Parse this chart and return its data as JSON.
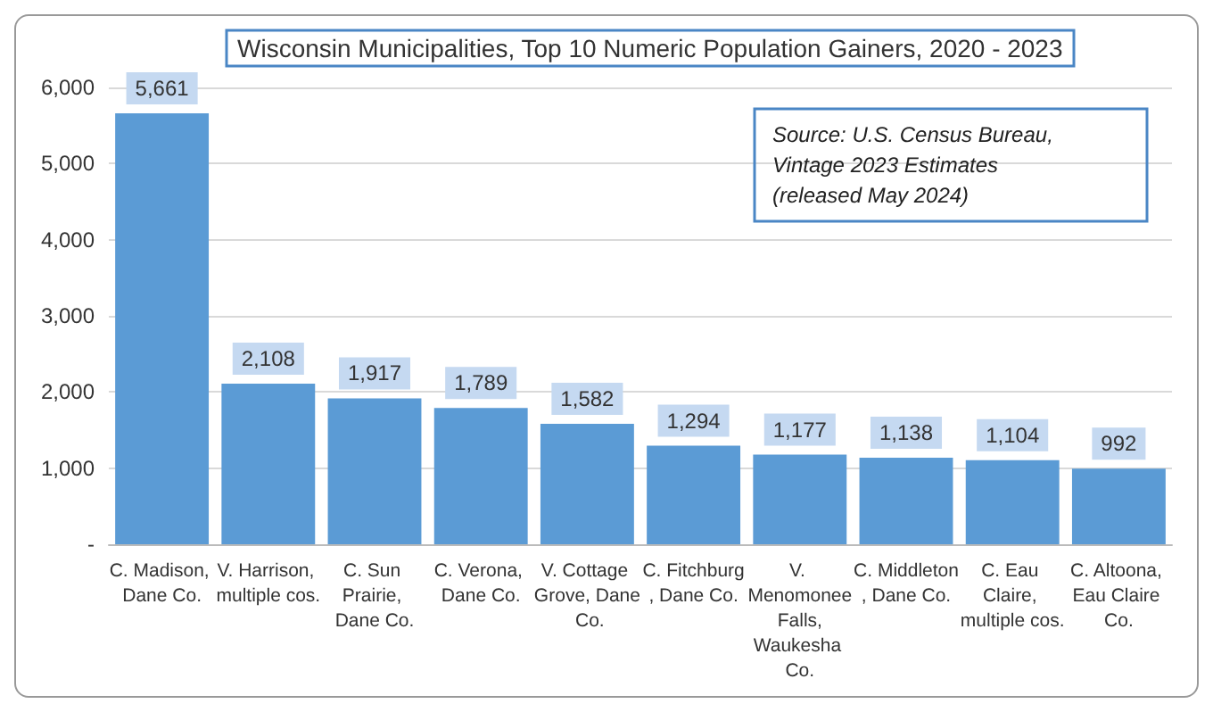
{
  "chart_data": {
    "type": "bar",
    "title": "Wisconsin Municipalities, Top 10 Numeric Population Gainers, 2020 - 2023",
    "annotations": [
      "Source: U.S. Census Bureau, Vintage 2023 Estimates (released May 2024)"
    ],
    "categories": [
      "C. Madison, Dane Co.",
      "V. Harrison, multiple cos.",
      "C. Sun Prairie, Dane Co.",
      "C. Verona, Dane Co.",
      "V. Cottage Grove, Dane Co.",
      "C. Fitchburg, Dane Co.",
      "V. Menomonee Falls, Waukesha Co.",
      "C. Middleton, Dane Co.",
      "C. Eau Claire, multiple cos.",
      "C. Altoona, Eau Claire Co."
    ],
    "values": [
      5661,
      2108,
      1917,
      1789,
      1582,
      1294,
      1177,
      1138,
      1104,
      992
    ],
    "color": "#5b9bd5",
    "ylim": [
      0,
      6000
    ],
    "yticks": [
      {
        "value": 0,
        "label": "-"
      },
      {
        "value": 1000,
        "label": "1,000"
      },
      {
        "value": 2000,
        "label": "2,000"
      },
      {
        "value": 3000,
        "label": "3,000"
      },
      {
        "value": 4000,
        "label": "4,000"
      },
      {
        "value": 5000,
        "label": "5,000"
      },
      {
        "value": 6000,
        "label": "6,000"
      }
    ],
    "value_labels": [
      "5,661",
      "2,108",
      "1,917",
      "1,789",
      "1,582",
      "1,294",
      "1,177",
      "1,138",
      "1,104",
      "992"
    ],
    "grid": "y"
  }
}
